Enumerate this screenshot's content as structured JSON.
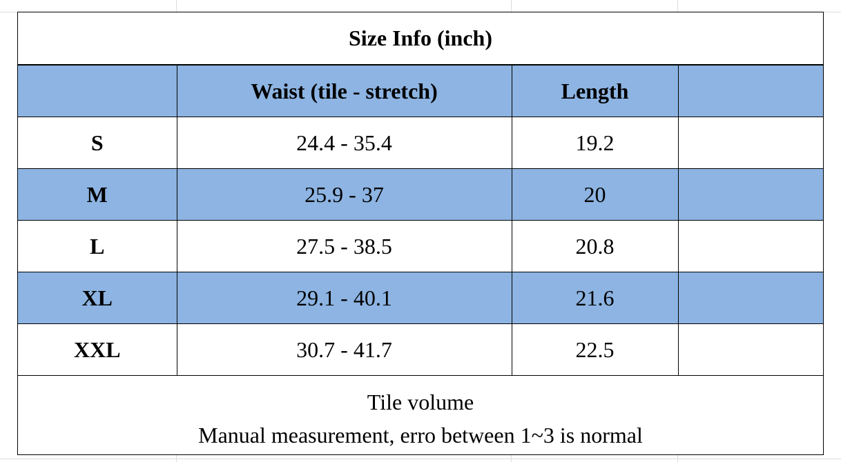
{
  "title": "Size Info (inch)",
  "table": {
    "header": [
      "",
      "Waist (tile - stretch)",
      "Length",
      ""
    ],
    "rows": [
      {
        "size": "S",
        "waist": "24.4 - 35.4",
        "length": "19.2",
        "extra": ""
      },
      {
        "size": "M",
        "waist": "25.9 - 37",
        "length": "20",
        "extra": ""
      },
      {
        "size": "L",
        "waist": "27.5 - 38.5",
        "length": "20.8",
        "extra": ""
      },
      {
        "size": "XL",
        "waist": "29.1 - 40.1",
        "length": "21.6",
        "extra": ""
      },
      {
        "size": "XXL",
        "waist": "30.7 - 41.7",
        "length": "22.5",
        "extra": ""
      }
    ]
  },
  "footer": {
    "line1": "Tile volume",
    "line2": "Manual measurement, erro between 1~3 is normal"
  },
  "colors": {
    "header_fill": "#8db4e2",
    "border": "#000000",
    "gridline": "#dcdcdc"
  }
}
